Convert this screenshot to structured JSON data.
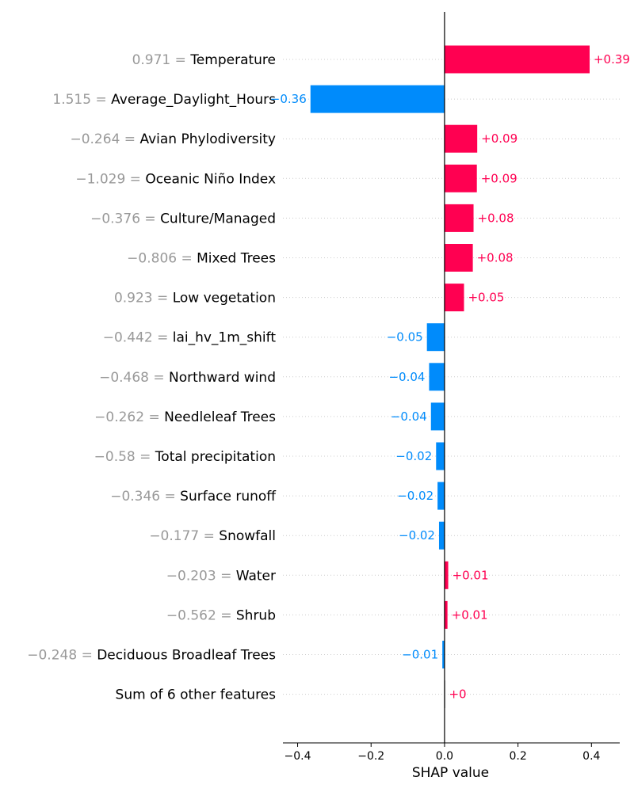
{
  "chart_data": {
    "type": "bar",
    "orientation": "horizontal",
    "xlabel": "SHAP value",
    "xlim": [
      -0.44,
      0.477
    ],
    "xticks": [
      -0.4,
      -0.2,
      0.0,
      0.2,
      0.4
    ],
    "xtick_labels": [
      "−0.4",
      "−0.2",
      "0.0",
      "0.2",
      "0.4"
    ],
    "zero_line": true,
    "grid": false,
    "colors": {
      "positive": "#ff0051",
      "negative": "#008bfb",
      "neutral": "#cccccc",
      "feature_value_text": "#999999"
    },
    "rows": [
      {
        "feature": "Temperature",
        "feature_value": "0.971",
        "value": 0.395,
        "label": "+0.39"
      },
      {
        "feature": "Average_Daylight_Hours",
        "feature_value": "1.515",
        "value": -0.365,
        "label": "−0.36"
      },
      {
        "feature": "Avian Phylodiversity",
        "feature_value": "−0.264",
        "value": 0.089,
        "label": "+0.09"
      },
      {
        "feature": "Oceanic Niño Index",
        "feature_value": "−1.029",
        "value": 0.088,
        "label": "+0.09"
      },
      {
        "feature": "Culture/Managed",
        "feature_value": "−0.376",
        "value": 0.079,
        "label": "+0.08"
      },
      {
        "feature": "Mixed Trees",
        "feature_value": "−0.806",
        "value": 0.077,
        "label": "+0.08"
      },
      {
        "feature": "Low vegetation",
        "feature_value": "0.923",
        "value": 0.053,
        "label": "+0.05"
      },
      {
        "feature": "lai_hv_1m_shift",
        "feature_value": "−0.442",
        "value": -0.048,
        "label": "−0.05"
      },
      {
        "feature": "Northward wind",
        "feature_value": "−0.468",
        "value": -0.042,
        "label": "−0.04"
      },
      {
        "feature": "Needleleaf Trees",
        "feature_value": "−0.262",
        "value": -0.037,
        "label": "−0.04"
      },
      {
        "feature": "Total precipitation",
        "feature_value": "−0.58",
        "value": -0.023,
        "label": "−0.02"
      },
      {
        "feature": "Surface runoff",
        "feature_value": "−0.346",
        "value": -0.019,
        "label": "−0.02"
      },
      {
        "feature": "Snowfall",
        "feature_value": "−0.177",
        "value": -0.015,
        "label": "−0.02"
      },
      {
        "feature": "Water",
        "feature_value": "−0.203",
        "value": 0.01,
        "label": "+0.01"
      },
      {
        "feature": "Shrub",
        "feature_value": "−0.562",
        "value": 0.008,
        "label": "+0.01"
      },
      {
        "feature": "Deciduous Broadleaf Trees",
        "feature_value": "−0.248",
        "value": -0.006,
        "label": "−0.01"
      },
      {
        "feature": "Sum of 6 other features",
        "feature_value": "",
        "value": 0.001,
        "label": "+0"
      }
    ]
  }
}
